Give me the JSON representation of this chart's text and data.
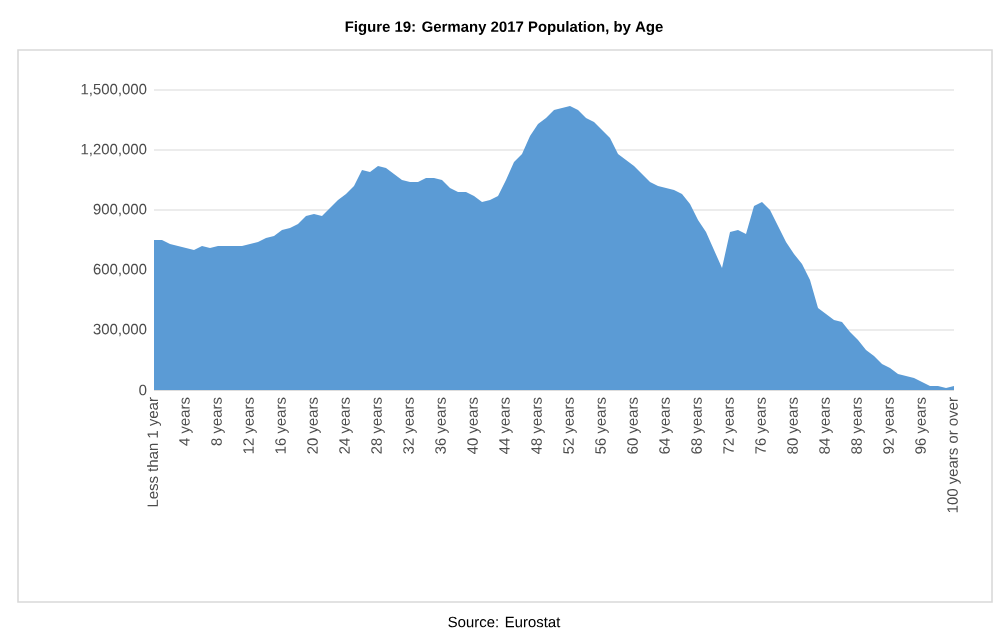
{
  "chart_data": {
    "type": "area",
    "title": "Figure 19: Germany 2017 Population, by Age",
    "categories": [
      "Less than 1 year",
      null,
      null,
      null,
      "4 years",
      null,
      null,
      null,
      "8 years",
      null,
      null,
      null,
      "12 years",
      null,
      null,
      null,
      "16 years",
      null,
      null,
      null,
      "20 years",
      null,
      null,
      null,
      "24 years",
      null,
      null,
      null,
      "28 years",
      null,
      null,
      null,
      "32 years",
      null,
      null,
      null,
      "36 years",
      null,
      null,
      null,
      "40 years",
      null,
      null,
      null,
      "44 years",
      null,
      null,
      null,
      "48 years",
      null,
      null,
      null,
      "52 years",
      null,
      null,
      null,
      "56 years",
      null,
      null,
      null,
      "60 years",
      null,
      null,
      null,
      "64 years",
      null,
      null,
      null,
      "68 years",
      null,
      null,
      null,
      "72 years",
      null,
      null,
      null,
      "76 years",
      null,
      null,
      null,
      "80 years",
      null,
      null,
      null,
      "84 years",
      null,
      null,
      null,
      "88 years",
      null,
      null,
      null,
      "92 years",
      null,
      null,
      null,
      "96 years",
      null,
      null,
      null,
      "100 years or over"
    ],
    "values": [
      750000,
      750000,
      730000,
      720000,
      710000,
      700000,
      720000,
      710000,
      720000,
      720000,
      720000,
      720000,
      730000,
      740000,
      760000,
      770000,
      800000,
      810000,
      830000,
      870000,
      880000,
      870000,
      910000,
      950000,
      980000,
      1020000,
      1100000,
      1090000,
      1120000,
      1110000,
      1080000,
      1050000,
      1040000,
      1040000,
      1060000,
      1060000,
      1050000,
      1010000,
      990000,
      990000,
      970000,
      940000,
      950000,
      970000,
      1050000,
      1140000,
      1180000,
      1270000,
      1330000,
      1360000,
      1400000,
      1410000,
      1420000,
      1400000,
      1360000,
      1340000,
      1300000,
      1260000,
      1180000,
      1150000,
      1120000,
      1080000,
      1040000,
      1020000,
      1010000,
      1000000,
      980000,
      930000,
      850000,
      790000,
      700000,
      610000,
      790000,
      800000,
      780000,
      920000,
      940000,
      900000,
      820000,
      740000,
      680000,
      630000,
      550000,
      410000,
      380000,
      350000,
      340000,
      290000,
      250000,
      200000,
      170000,
      130000,
      110000,
      80000,
      70000,
      60000,
      40000,
      20000,
      20000,
      10000,
      20000
    ],
    "color": "#5b9bd5",
    "ylim": [
      0,
      1500000
    ],
    "yticks": [
      0,
      {
        "value": 300000,
        "label": "300,000"
      },
      {
        "value": 600000,
        "label": "600,000"
      },
      {
        "value": 900000,
        "label": "900,000"
      },
      {
        "value": 1200000,
        "label": "1,200,000"
      },
      {
        "value": 1500000,
        "label": "1,500,000"
      }
    ],
    "grid": "y",
    "annotations": [
      "Source: Eurostat"
    ]
  }
}
